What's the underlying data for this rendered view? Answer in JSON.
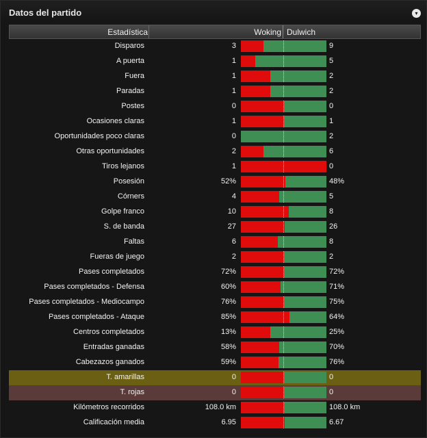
{
  "panel": {
    "title": "Datos del partido",
    "toggle_icon": "▾"
  },
  "header": {
    "stat": "Estadística",
    "home": "Woking",
    "away": "Dulwich"
  },
  "colors": {
    "home_bar": "#e00c0c",
    "away_bar": "#3f8f55"
  },
  "rows": [
    {
      "stat": "Disparos",
      "home": "3",
      "away": "9",
      "home_share": 0.26
    },
    {
      "stat": "A puerta",
      "home": "1",
      "away": "5",
      "home_share": 0.17
    },
    {
      "stat": "Fuera",
      "home": "1",
      "away": "2",
      "home_share": 0.34
    },
    {
      "stat": "Paradas",
      "home": "1",
      "away": "2",
      "home_share": 0.34
    },
    {
      "stat": "Postes",
      "home": "0",
      "away": "0",
      "home_share": 0.5
    },
    {
      "stat": "Ocasiones claras",
      "home": "1",
      "away": "1",
      "home_share": 0.5
    },
    {
      "stat": "Oportunidades poco claras",
      "home": "0",
      "away": "2",
      "home_share": 0.0
    },
    {
      "stat": "Otras oportunidades",
      "home": "2",
      "away": "6",
      "home_share": 0.26
    },
    {
      "stat": "Tiros lejanos",
      "home": "1",
      "away": "0",
      "home_share": 1.0
    },
    {
      "stat": "Posesión",
      "home": "52%",
      "away": "48%",
      "home_share": 0.52
    },
    {
      "stat": "Córners",
      "home": "4",
      "away": "5",
      "home_share": 0.45
    },
    {
      "stat": "Golpe franco",
      "home": "10",
      "away": "8",
      "home_share": 0.56
    },
    {
      "stat": "S. de banda",
      "home": "27",
      "away": "26",
      "home_share": 0.51
    },
    {
      "stat": "Faltas",
      "home": "6",
      "away": "8",
      "home_share": 0.43
    },
    {
      "stat": "Fueras de juego",
      "home": "2",
      "away": "2",
      "home_share": 0.5
    },
    {
      "stat": "Pases completados",
      "home": "72%",
      "away": "72%",
      "home_share": 0.5
    },
    {
      "stat": "Pases completados - Defensa",
      "home": "60%",
      "away": "71%",
      "home_share": 0.46
    },
    {
      "stat": "Pases completados - Mediocampo",
      "home": "76%",
      "away": "75%",
      "home_share": 0.5
    },
    {
      "stat": "Pases completados - Ataque",
      "home": "85%",
      "away": "64%",
      "home_share": 0.57
    },
    {
      "stat": "Centros completados",
      "home": "13%",
      "away": "25%",
      "home_share": 0.34
    },
    {
      "stat": "Entradas ganadas",
      "home": "58%",
      "away": "70%",
      "home_share": 0.45
    },
    {
      "stat": "Cabezazos ganados",
      "home": "59%",
      "away": "76%",
      "home_share": 0.44
    },
    {
      "stat": "T. amarillas",
      "home": "0",
      "away": "0",
      "home_share": 0.5,
      "highlight": "yellow"
    },
    {
      "stat": "T. rojas",
      "home": "0",
      "away": "0",
      "home_share": 0.5,
      "highlight": "red"
    },
    {
      "stat": "Kilómetros recorridos",
      "home": "108.0 km",
      "away": "108.0 km",
      "home_share": 0.5
    },
    {
      "stat": "Calificación media",
      "home": "6.95",
      "away": "6.67",
      "home_share": 0.51
    }
  ]
}
